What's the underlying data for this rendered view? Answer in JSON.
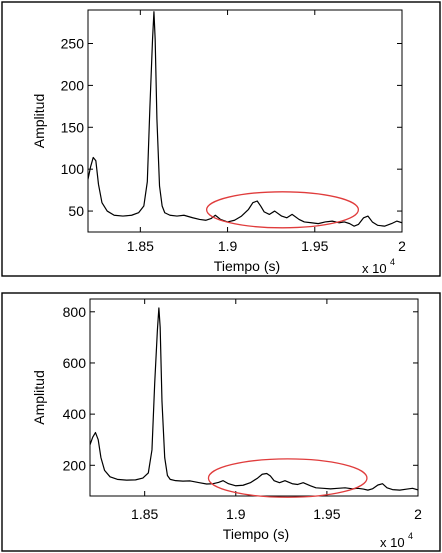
{
  "chart_data": [
    {
      "type": "line",
      "xlabel": "Tiempo (s)",
      "ylabel": "Amplitud",
      "x_multiplier": "x 10",
      "x_multiplier_exp": "4",
      "xlim": [
        1.82,
        2.0
      ],
      "ylim": [
        25,
        290
      ],
      "x_ticks": [
        1.85,
        1.9,
        1.95,
        2.0
      ],
      "x_tick_labels": [
        "1.85",
        "1.9",
        "1.95",
        "2"
      ],
      "y_ticks": [
        50,
        100,
        150,
        200,
        250
      ],
      "y_tick_labels": [
        "50",
        "100",
        "150",
        "200",
        "250"
      ],
      "grid": false,
      "annotation": {
        "shape": "ellipse",
        "color": "#e03c3c",
        "x_range": [
          1.888,
          1.975
        ],
        "y_range": [
          30,
          73
        ]
      },
      "series": [
        {
          "color": "#000000",
          "x": [
            1.82,
            1.8215,
            1.823,
            1.8245,
            1.826,
            1.828,
            1.831,
            1.835,
            1.84,
            1.845,
            1.849,
            1.852,
            1.854,
            1.8555,
            1.857,
            1.8578,
            1.8585,
            1.8595,
            1.861,
            1.8625,
            1.864,
            1.867,
            1.871,
            1.875,
            1.88,
            1.884,
            1.8875,
            1.8905,
            1.893,
            1.896,
            1.9,
            1.904,
            1.908,
            1.912,
            1.9145,
            1.917,
            1.919,
            1.921,
            1.924,
            1.927,
            1.931,
            1.934,
            1.937,
            1.941,
            1.944,
            1.948,
            1.952,
            1.956,
            1.96,
            1.964,
            1.967,
            1.97,
            1.9725,
            1.975,
            1.978,
            1.9805,
            1.983,
            1.986,
            1.99,
            1.994,
            1.997,
            2.0
          ],
          "y": [
            88,
            103,
            114,
            110,
            82,
            60,
            50,
            45,
            44,
            45,
            48,
            56,
            85,
            175,
            255,
            288,
            255,
            160,
            80,
            56,
            48,
            45,
            44,
            45,
            42,
            40,
            39,
            41,
            45,
            40,
            37,
            39,
            44,
            52,
            60,
            62,
            56,
            49,
            46,
            50,
            44,
            42,
            46,
            40,
            37,
            36,
            35,
            37,
            38,
            36,
            37,
            35,
            32,
            34,
            42,
            44,
            37,
            33,
            32,
            35,
            38,
            36
          ]
        }
      ]
    },
    {
      "type": "line",
      "xlabel": "Tiempo (s)",
      "ylabel": "Amplitud",
      "x_multiplier": "x 10",
      "x_multiplier_exp": "4",
      "xlim": [
        1.82,
        2.0
      ],
      "ylim": [
        80,
        850
      ],
      "x_ticks": [
        1.85,
        1.9,
        1.95,
        2.0
      ],
      "x_tick_labels": [
        "1.85",
        "1.9",
        "1.95",
        "2"
      ],
      "y_ticks": [
        200,
        400,
        600,
        800
      ],
      "y_tick_labels": [
        "200",
        "400",
        "600",
        "800"
      ],
      "grid": false,
      "annotation": {
        "shape": "ellipse",
        "color": "#e03c3c",
        "x_range": [
          1.885,
          1.972
        ],
        "y_range": [
          75,
          225
        ]
      },
      "series": [
        {
          "color": "#000000",
          "x": [
            1.82,
            1.8215,
            1.823,
            1.8245,
            1.826,
            1.828,
            1.831,
            1.835,
            1.84,
            1.845,
            1.849,
            1.852,
            1.854,
            1.8555,
            1.857,
            1.8578,
            1.8585,
            1.8595,
            1.861,
            1.8625,
            1.864,
            1.867,
            1.871,
            1.875,
            1.88,
            1.884,
            1.8875,
            1.8905,
            1.893,
            1.896,
            1.9,
            1.904,
            1.908,
            1.912,
            1.9145,
            1.917,
            1.919,
            1.921,
            1.924,
            1.927,
            1.931,
            1.934,
            1.937,
            1.941,
            1.944,
            1.948,
            1.952,
            1.956,
            1.96,
            1.964,
            1.967,
            1.97,
            1.9725,
            1.975,
            1.978,
            1.9805,
            1.983,
            1.986,
            1.99,
            1.994,
            1.997,
            2.0
          ],
          "y": [
            280,
            310,
            328,
            300,
            230,
            180,
            155,
            145,
            142,
            143,
            150,
            170,
            260,
            520,
            730,
            815,
            740,
            450,
            230,
            160,
            145,
            140,
            138,
            139,
            132,
            127,
            128,
            133,
            140,
            128,
            120,
            122,
            132,
            150,
            165,
            168,
            158,
            140,
            132,
            140,
            128,
            125,
            132,
            120,
            112,
            110,
            108,
            110,
            112,
            108,
            110,
            107,
            103,
            108,
            123,
            128,
            112,
            105,
            103,
            107,
            110,
            104
          ]
        }
      ]
    }
  ]
}
